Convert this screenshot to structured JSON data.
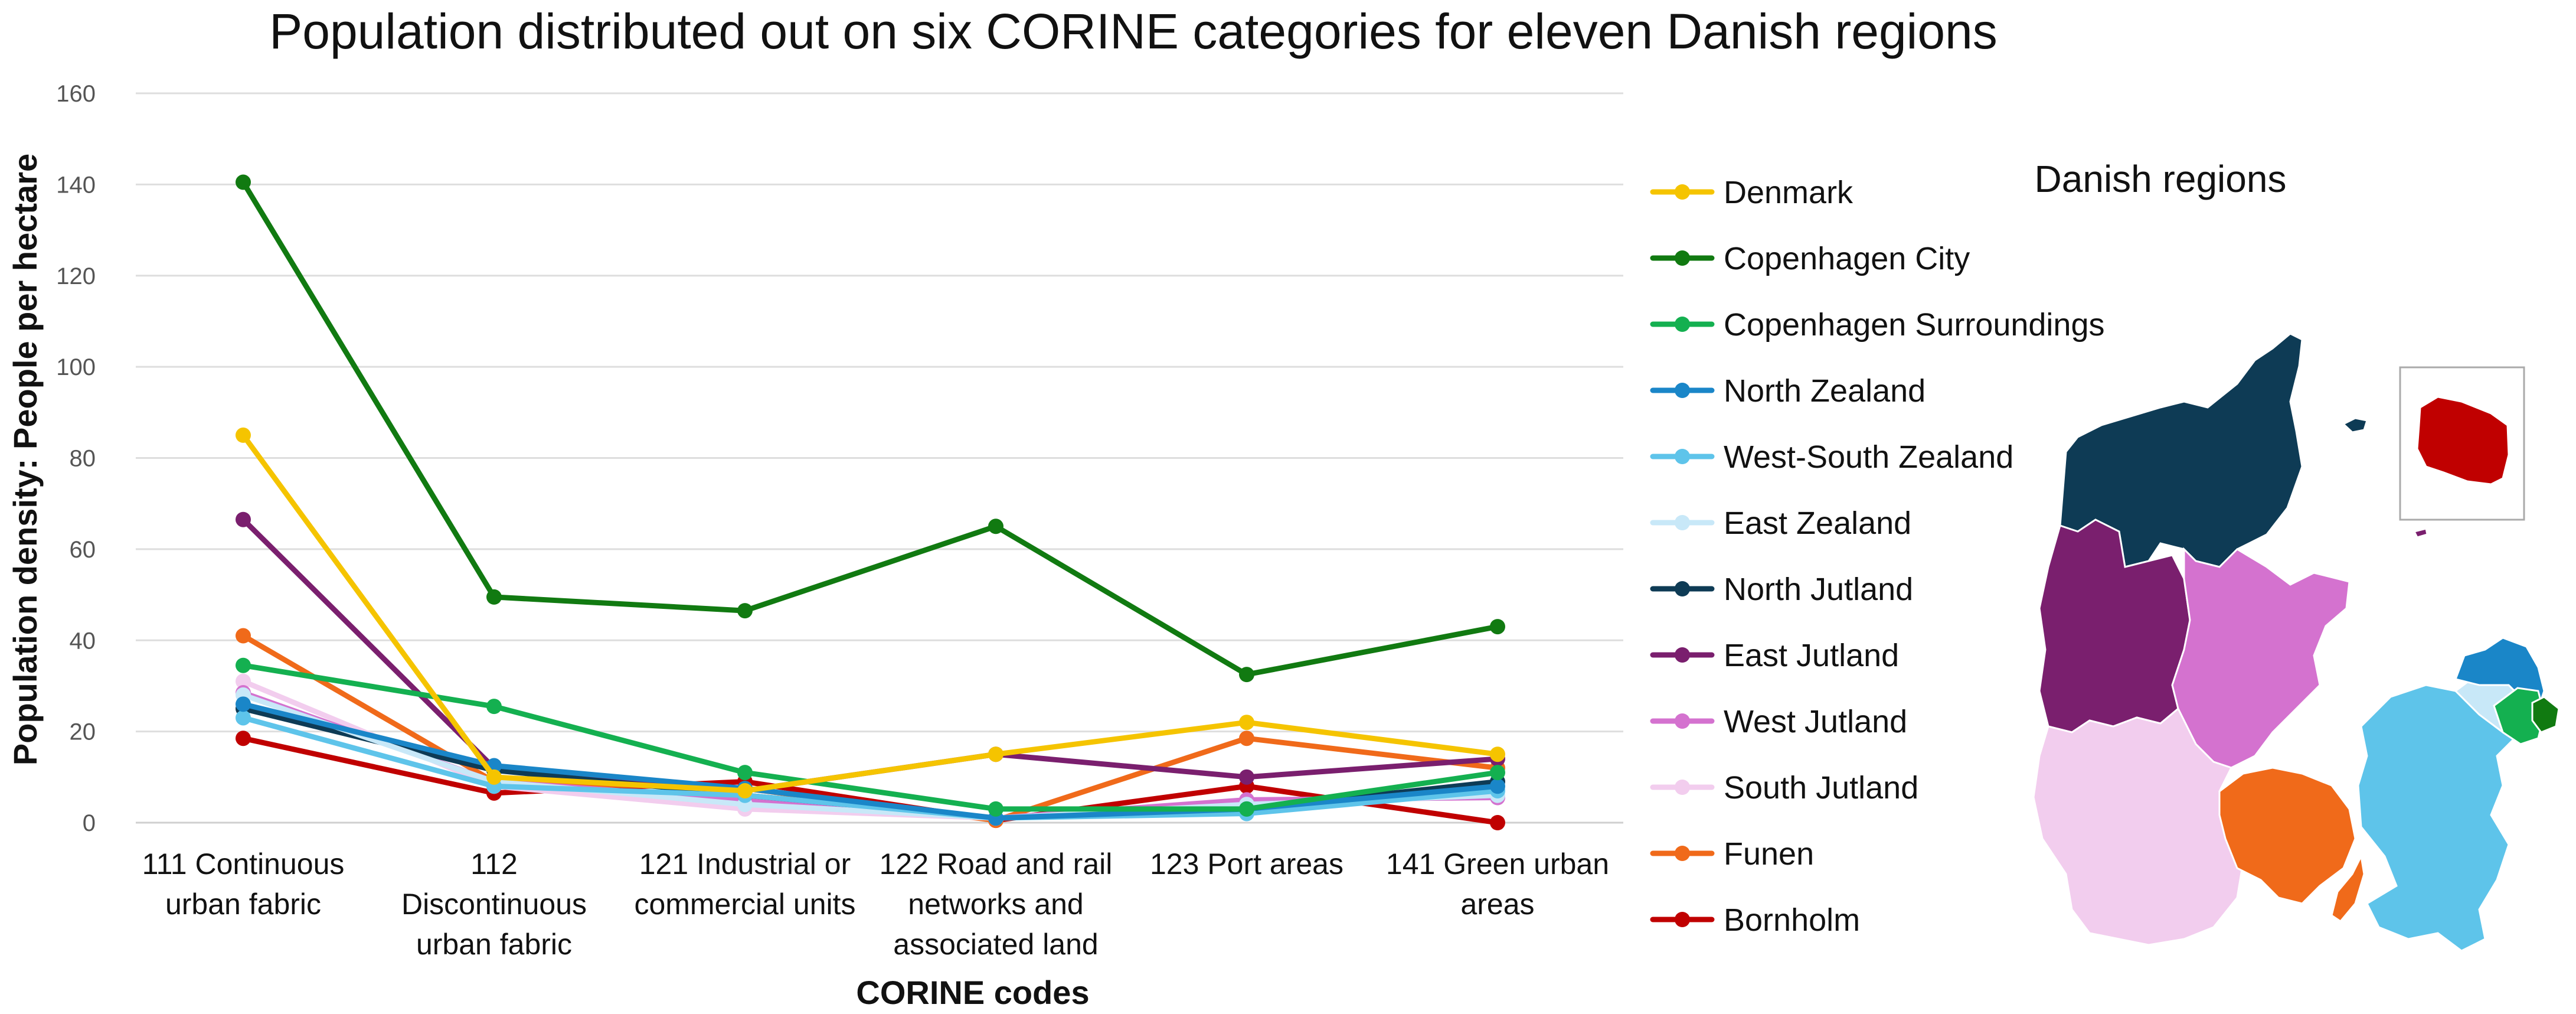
{
  "chart_data": {
    "type": "line",
    "title": "Population distributed out on six CORINE categories for eleven Danish regions",
    "xlabel": "CORINE codes",
    "ylabel": "Population density: People per hectare",
    "ylim": [
      0,
      160
    ],
    "yticks": [
      0,
      20,
      40,
      60,
      80,
      100,
      120,
      140,
      160
    ],
    "grid": true,
    "legend_position": "right",
    "categories": [
      [
        "111 Continuous",
        "urban fabric"
      ],
      [
        "112",
        "Discontinuous",
        "urban fabric"
      ],
      [
        "121 Industrial or",
        "commercial units"
      ],
      [
        "122 Road and rail",
        "networks and",
        "associated land"
      ],
      [
        "123 Port areas"
      ],
      [
        "141 Green urban",
        "areas"
      ]
    ],
    "series": [
      {
        "name": "Denmark",
        "color": "#f5c400",
        "values": [
          85,
          10,
          7,
          15,
          22,
          15
        ]
      },
      {
        "name": "Copenhagen City",
        "color": "#117a11",
        "values": [
          140.5,
          49.5,
          46.5,
          65,
          32.5,
          43
        ]
      },
      {
        "name": "Copenhagen Surroundings",
        "color": "#14b050",
        "values": [
          34.5,
          25.5,
          11,
          3,
          3,
          11
        ]
      },
      {
        "name": "North Zealand",
        "color": "#1a86c8",
        "values": [
          26,
          12.5,
          7.5,
          1,
          3,
          8
        ]
      },
      {
        "name": "West-South Zealand",
        "color": "#5ec4ea",
        "values": [
          23,
          8,
          6,
          1,
          2,
          7
        ]
      },
      {
        "name": "East Zealand",
        "color": "#c8e8f8",
        "values": [
          28,
          9,
          4,
          1,
          4,
          6
        ]
      },
      {
        "name": "North Jutland",
        "color": "#0e3b55",
        "values": [
          25,
          11.5,
          6,
          1,
          3,
          9
        ]
      },
      {
        "name": "East Jutland",
        "color": "#7a1f6e",
        "values": [
          66.5,
          12,
          7,
          15,
          10,
          14
        ]
      },
      {
        "name": "West Jutland",
        "color": "#d472cf",
        "values": [
          28.5,
          9,
          5,
          1,
          5,
          5.5
        ]
      },
      {
        "name": "South Jutland",
        "color": "#f2cdee",
        "values": [
          31,
          8,
          3,
          1,
          3,
          7
        ]
      },
      {
        "name": "Funen",
        "color": "#f06a1a",
        "values": [
          41,
          9,
          7.5,
          0.5,
          18.5,
          12
        ]
      },
      {
        "name": "Bornholm",
        "color": "#c00000",
        "values": [
          18.5,
          6.5,
          9,
          0.5,
          8,
          0
        ]
      }
    ]
  },
  "map": {
    "title": "Danish regions",
    "colors": {
      "north_jutland": "#0e3b55",
      "east_jutland": "#7a1f6e",
      "west_jutland": "#d472cf",
      "south_jutland": "#f2cdee",
      "funen": "#f06a1a",
      "west_south_zealand": "#5ec4ea",
      "east_zealand": "#c8e8f8",
      "north_zealand": "#1a86c8",
      "copenhagen_surroundings": "#14b050",
      "copenhagen_city": "#117a11",
      "bornholm": "#c00000"
    }
  }
}
